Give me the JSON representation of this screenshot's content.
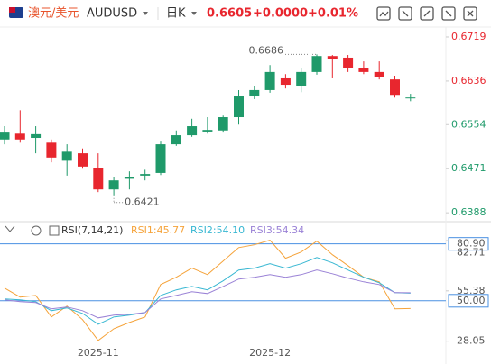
{
  "header": {
    "pair_name": "澳元/美元",
    "symbol": "AUDUSD",
    "period": "日K",
    "price": "0.6605",
    "change": "+0.0000",
    "change_pct": "+0.01%",
    "indicator": "RSI(7,14,21)"
  },
  "chart_data": [
    {
      "type": "candlestick",
      "up_color": "#1f9a6a",
      "down_color": "#e8262e",
      "high_label": "0.6686",
      "low_label": "0.6421",
      "categories": [
        null,
        null,
        null,
        null,
        null,
        null,
        "2025-11",
        null,
        null,
        null,
        null,
        null,
        null,
        null,
        null,
        null,
        null,
        "2025-12",
        null,
        null,
        null,
        null,
        null,
        null,
        null,
        null,
        null
      ],
      "open": [
        0.6526,
        0.6537,
        0.6529,
        0.652,
        0.6486,
        0.65,
        0.6473,
        0.6432,
        0.6452,
        0.6458,
        0.6463,
        0.6517,
        0.6534,
        0.6541,
        0.6543,
        0.6568,
        0.6607,
        0.6619,
        0.6641,
        0.6627,
        0.6653,
        0.6683,
        0.668,
        0.6661,
        0.6653,
        0.6639,
        0.6604
      ],
      "high": [
        0.6551,
        0.6581,
        0.6551,
        0.6526,
        0.6517,
        0.6509,
        0.65,
        0.6456,
        0.6466,
        0.6469,
        0.6522,
        0.6543,
        0.6565,
        0.6568,
        0.6571,
        0.6619,
        0.6627,
        0.6666,
        0.6649,
        0.6661,
        0.6686,
        0.6685,
        0.6685,
        0.6673,
        0.6673,
        0.6646,
        0.6612
      ],
      "low": [
        0.6517,
        0.652,
        0.65,
        0.6483,
        0.6458,
        0.6471,
        0.6427,
        0.6421,
        0.6432,
        0.6449,
        0.6459,
        0.6514,
        0.6531,
        0.6537,
        0.6539,
        0.6554,
        0.6602,
        0.6614,
        0.6622,
        0.6615,
        0.6648,
        0.6641,
        0.6653,
        0.6649,
        0.6639,
        0.6605,
        0.6598
      ],
      "close": [
        0.6539,
        0.6526,
        0.6536,
        0.6492,
        0.6503,
        0.6475,
        0.6432,
        0.6449,
        0.6456,
        0.6461,
        0.6517,
        0.6534,
        0.6551,
        0.6544,
        0.6568,
        0.6607,
        0.6619,
        0.6653,
        0.6629,
        0.6653,
        0.6683,
        0.6678,
        0.6661,
        0.6653,
        0.6644,
        0.661,
        0.6605
      ],
      "ylim": [
        0.6373,
        0.6741
      ],
      "yticks": [
        0.6719,
        0.6636,
        0.6554,
        0.6471,
        0.6388
      ]
    },
    {
      "type": "line",
      "series": [
        {
          "name": "RSI1:45.77",
          "color": "#f5a33a",
          "values": [
            56.9,
            52.0,
            52.9,
            41.2,
            47.1,
            39.7,
            28.4,
            34.8,
            38.2,
            41.2,
            58.8,
            62.8,
            67.7,
            64.2,
            71.6,
            78.9,
            80.4,
            82.9,
            73.1,
            76.5,
            82.4,
            75.0,
            69.1,
            62.8,
            60.3,
            45.6,
            45.77
          ]
        },
        {
          "name": "RSI2:54.10",
          "color": "#37b7d2",
          "values": [
            51.0,
            50.5,
            49.5,
            44.6,
            46.1,
            43.1,
            37.2,
            41.2,
            42.2,
            43.6,
            52.9,
            55.9,
            57.8,
            55.9,
            60.8,
            66.7,
            67.7,
            70.1,
            67.7,
            70.1,
            73.5,
            70.6,
            66.7,
            62.8,
            59.8,
            54.4,
            54.1
          ]
        },
        {
          "name": "RSI3:54.34",
          "color": "#9a82d6",
          "values": [
            50.5,
            49.5,
            49.0,
            45.6,
            46.6,
            44.6,
            40.7,
            42.2,
            42.6,
            43.6,
            51.0,
            52.9,
            54.9,
            53.9,
            57.8,
            61.8,
            62.8,
            64.2,
            62.8,
            64.2,
            66.7,
            64.7,
            62.3,
            60.3,
            58.8,
            54.4,
            54.34
          ]
        }
      ],
      "ylim": [
        22,
        92
      ],
      "yticks": [
        82.71,
        55.38,
        28.05
      ],
      "hlines": [
        {
          "value": 80.9,
          "label": "80.90"
        },
        {
          "value": 50,
          "label": "50.00"
        }
      ]
    }
  ]
}
